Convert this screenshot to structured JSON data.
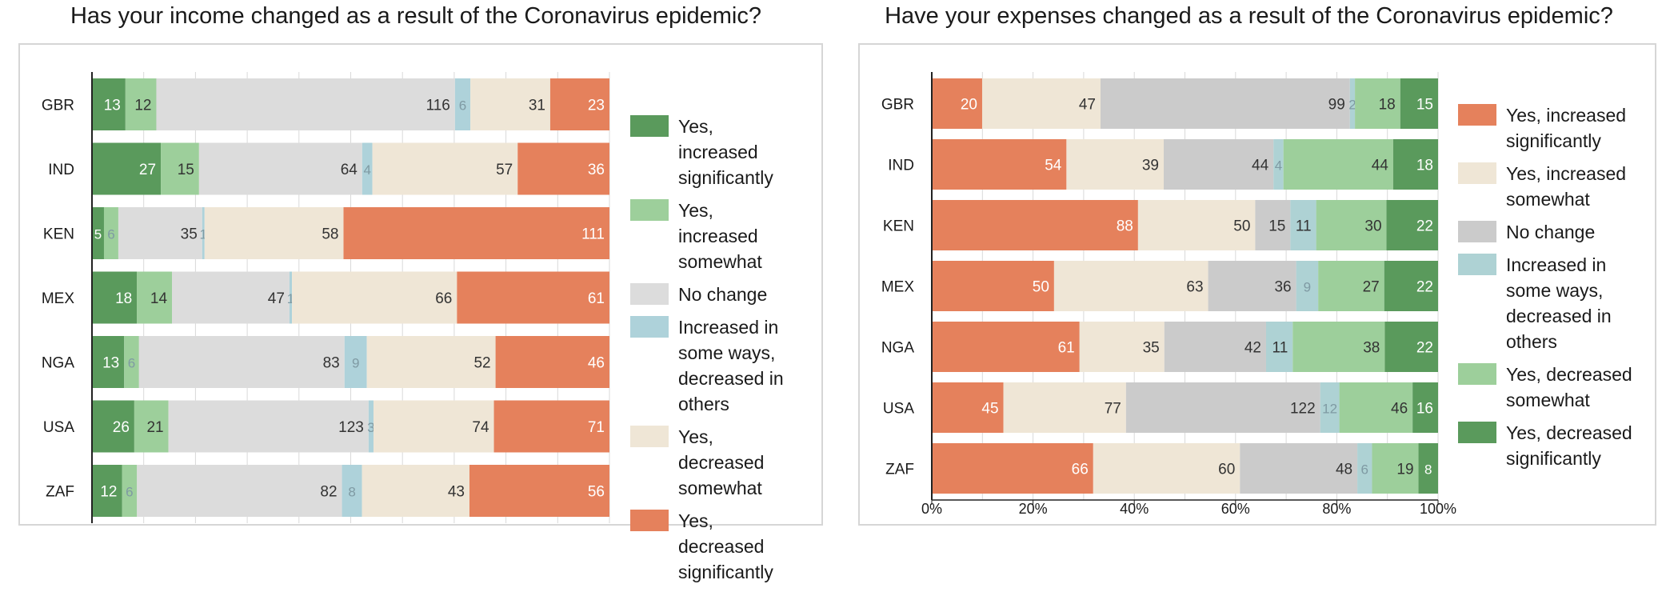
{
  "chart_data": [
    {
      "type": "bar",
      "stacked": true,
      "orientation": "horizontal",
      "title": "Has your income changed as a result of the Coronavirus epidemic?",
      "categories": [
        "GBR",
        "IND",
        "KEN",
        "MEX",
        "NGA",
        "USA",
        "ZAF"
      ],
      "series": [
        {
          "name": "Yes, increased significantly",
          "color": "#5a9a5c",
          "values": [
            13,
            27,
            5,
            18,
            13,
            26,
            12
          ]
        },
        {
          "name": "Yes, increased somewhat",
          "color": "#9dcf9b",
          "values": [
            12,
            15,
            6,
            14,
            6,
            21,
            6
          ]
        },
        {
          "name": "No change",
          "color": "#dcdcdc",
          "values": [
            116,
            64,
            35,
            47,
            83,
            123,
            82
          ]
        },
        {
          "name": "Increased in some ways, decreased in others",
          "color": "#aed2da",
          "values": [
            6,
            4,
            1,
            1,
            9,
            3,
            8
          ]
        },
        {
          "name": "Yes, decreased somewhat",
          "color": "#efe6d6",
          "values": [
            31,
            57,
            58,
            66,
            52,
            74,
            43
          ]
        },
        {
          "name": "Yes, decreased significantly",
          "color": "#e5815c",
          "values": [
            23,
            36,
            111,
            61,
            46,
            71,
            56
          ]
        }
      ],
      "xlim_percent": [
        0,
        100
      ],
      "grid": true,
      "legend": "right"
    },
    {
      "type": "bar",
      "stacked": true,
      "orientation": "horizontal",
      "title": "Have your expenses changed as a result of the Coronavirus epidemic?",
      "categories": [
        "GBR",
        "IND",
        "KEN",
        "MEX",
        "NGA",
        "USA",
        "ZAF"
      ],
      "series": [
        {
          "name": "Yes, increased significantly",
          "color": "#e5815c",
          "values": [
            20,
            54,
            88,
            50,
            61,
            45,
            66
          ]
        },
        {
          "name": "Yes, increased somewhat",
          "color": "#efe6d6",
          "values": [
            47,
            39,
            50,
            63,
            35,
            77,
            60
          ]
        },
        {
          "name": "No change",
          "color": "#cbcbcb",
          "values": [
            99,
            44,
            15,
            36,
            42,
            122,
            48
          ]
        },
        {
          "name": "Increased in some ways, decreased in others",
          "color": "#aed2d4",
          "values": [
            2,
            4,
            11,
            9,
            11,
            12,
            6
          ]
        },
        {
          "name": "Yes, decreased somewhat",
          "color": "#9dcf9b",
          "values": [
            18,
            44,
            30,
            27,
            38,
            46,
            19
          ]
        },
        {
          "name": "Yes, decreased significantly",
          "color": "#5a9a5c",
          "values": [
            15,
            18,
            22,
            22,
            22,
            16,
            8
          ]
        }
      ],
      "xlim_percent": [
        0,
        100
      ],
      "xticks": [
        "0%",
        "20%",
        "40%",
        "60%",
        "80%",
        "100%"
      ],
      "grid": true,
      "legend": "right"
    }
  ],
  "legends": [
    {
      "items": [
        {
          "lines": [
            "Yes, increased",
            "significantly"
          ],
          "color": "#5a9a5c"
        },
        {
          "lines": [
            "Yes, increased",
            "somewhat"
          ],
          "color": "#9dcf9b"
        },
        {
          "lines": [
            "No change"
          ],
          "color": "#dcdcdc"
        },
        {
          "lines": [
            "Increased in",
            "some ways,",
            "decreased in",
            "others"
          ],
          "color": "#aed2da"
        },
        {
          "lines": [
            "Yes, decreased",
            "somewhat"
          ],
          "color": "#efe6d6"
        },
        {
          "lines": [
            "Yes, decreased",
            "significantly"
          ],
          "color": "#e5815c"
        }
      ]
    },
    {
      "items": [
        {
          "lines": [
            "Yes, increased",
            "significantly"
          ],
          "color": "#e5815c"
        },
        {
          "lines": [
            "Yes, increased",
            "somewhat"
          ],
          "color": "#efe6d6"
        },
        {
          "lines": [
            "No change"
          ],
          "color": "#cbcbcb"
        },
        {
          "lines": [
            "Increased in",
            "some ways,",
            "decreased in",
            "others"
          ],
          "color": "#aed2d4"
        },
        {
          "lines": [
            "Yes, decreased",
            "somewhat"
          ],
          "color": "#9dcf9b"
        },
        {
          "lines": [
            "Yes, decreased",
            "significantly"
          ],
          "color": "#5a9a5c"
        }
      ]
    }
  ]
}
